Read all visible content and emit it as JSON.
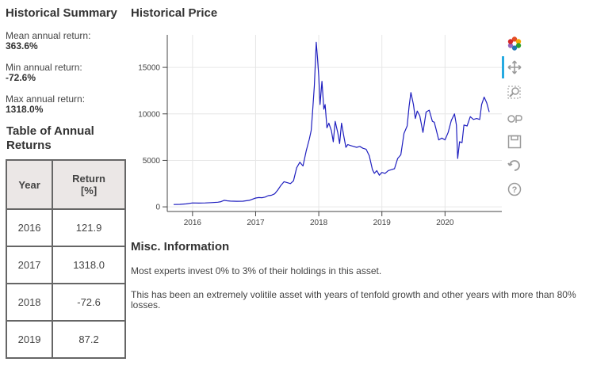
{
  "summary": {
    "title": "Historical Summary",
    "stats": [
      {
        "label": "Mean annual return:",
        "value": "363.6%"
      },
      {
        "label": "Min annual return:",
        "value": "-72.6%"
      },
      {
        "label": "Max annual return:",
        "value": "1318.0%"
      }
    ]
  },
  "annual_table": {
    "title": "Table of Annual Returns",
    "columns": [
      "Year",
      "Return [%]"
    ],
    "rows": [
      {
        "year": "2016",
        "return": "121.9"
      },
      {
        "year": "2017",
        "return": "1318.0"
      },
      {
        "year": "2018",
        "return": "-72.6"
      },
      {
        "year": "2019",
        "return": "87.2"
      }
    ]
  },
  "price_panel": {
    "title": "Historical Price"
  },
  "chart_data": {
    "type": "line",
    "title": "",
    "xlabel": "",
    "ylabel": "",
    "x_ticks": [
      "2016",
      "2017",
      "2018",
      "2019",
      "2020"
    ],
    "y_ticks": [
      "0",
      "5000",
      "10000",
      "15000"
    ],
    "xlim": [
      2015.6,
      2020.9
    ],
    "ylim": [
      -500,
      18500
    ],
    "grid": true,
    "line_color": "#1f1fbf",
    "series": [
      {
        "x": [
          2015.7,
          2015.8,
          2015.9,
          2016.0,
          2016.1,
          2016.2,
          2016.3,
          2016.4,
          2016.45,
          2016.5,
          2016.55,
          2016.6,
          2016.7,
          2016.8,
          2016.9,
          2017.0,
          2017.05,
          2017.1,
          2017.15,
          2017.2,
          2017.25,
          2017.3,
          2017.35,
          2017.4,
          2017.45,
          2017.5,
          2017.55,
          2017.6,
          2017.65,
          2017.7,
          2017.75,
          2017.8,
          2017.85,
          2017.88,
          2017.9,
          2017.93,
          2017.96,
          2017.98,
          2018.0,
          2018.02,
          2018.05,
          2018.08,
          2018.1,
          2018.13,
          2018.16,
          2018.2,
          2018.23,
          2018.26,
          2018.3,
          2018.33,
          2018.36,
          2018.4,
          2018.43,
          2018.46,
          2018.5,
          2018.55,
          2018.6,
          2018.65,
          2018.7,
          2018.75,
          2018.8,
          2018.85,
          2018.88,
          2018.92,
          2018.96,
          2019.0,
          2019.05,
          2019.1,
          2019.15,
          2019.2,
          2019.25,
          2019.3,
          2019.35,
          2019.4,
          2019.43,
          2019.46,
          2019.5,
          2019.53,
          2019.56,
          2019.6,
          2019.65,
          2019.7,
          2019.75,
          2019.8,
          2019.83,
          2019.86,
          2019.9,
          2019.95,
          2020.0,
          2020.05,
          2020.1,
          2020.15,
          2020.18,
          2020.2,
          2020.23,
          2020.27,
          2020.3,
          2020.35,
          2020.4,
          2020.45,
          2020.5,
          2020.55,
          2020.58,
          2020.62,
          2020.66,
          2020.7
        ],
        "y": [
          250,
          270,
          320,
          420,
          400,
          420,
          450,
          500,
          560,
          700,
          650,
          620,
          600,
          610,
          700,
          950,
          1000,
          980,
          1050,
          1200,
          1250,
          1400,
          1800,
          2300,
          2700,
          2600,
          2500,
          2800,
          4200,
          4800,
          4400,
          6000,
          7300,
          8200,
          10000,
          13000,
          17700,
          16000,
          14000,
          11000,
          13500,
          10500,
          11000,
          8500,
          9000,
          8200,
          7000,
          9200,
          8000,
          6800,
          9000,
          7500,
          6400,
          6700,
          6600,
          6500,
          6400,
          6500,
          6300,
          6200,
          5500,
          4000,
          3600,
          3900,
          3400,
          3700,
          3600,
          3900,
          4000,
          4100,
          5200,
          5600,
          7900,
          8700,
          10800,
          12300,
          11000,
          9500,
          10300,
          9800,
          8000,
          10200,
          10400,
          9200,
          9100,
          8300,
          7200,
          7400,
          7200,
          8000,
          9300,
          10000,
          8800,
          5200,
          7000,
          6900,
          8800,
          8700,
          9700,
          9400,
          9500,
          9400,
          11000,
          11800,
          11200,
          10200
        ]
      }
    ]
  },
  "toolbar": {
    "tools": [
      "bokeh-logo-icon",
      "pan-icon",
      "box-zoom-icon",
      "wheel-zoom-icon",
      "save-icon",
      "reset-icon",
      "help-icon"
    ]
  },
  "misc": {
    "title": "Misc. Information",
    "p1": "Most experts invest 0% to 3% of their holdings in this asset.",
    "p2": "This has been an extremely volitile asset with years of tenfold growth and other years with more than 80% losses."
  }
}
